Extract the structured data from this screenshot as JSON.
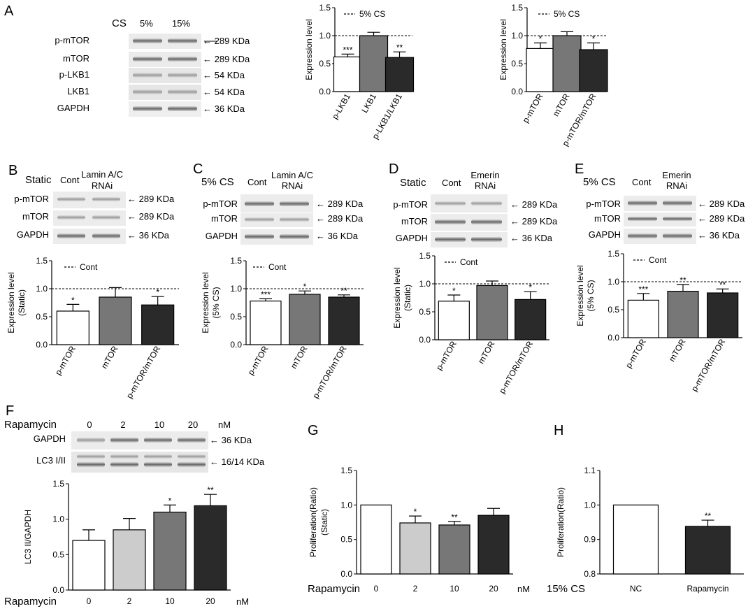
{
  "panels": {
    "A": {
      "label": "A",
      "blot": {
        "header": [
          "CS",
          "5%",
          "15%"
        ],
        "rows": [
          {
            "name": "p-mTOR",
            "kda": "289 KDa"
          },
          {
            "name": "mTOR",
            "kda": "289 KDa"
          },
          {
            "name": "p-LKB1",
            "kda": "54 KDa"
          },
          {
            "name": "LKB1",
            "kda": "54 KDa"
          },
          {
            "name": "GAPDH",
            "kda": "36 KDa"
          }
        ]
      }
    },
    "B": {
      "label": "B",
      "blot": {
        "condition": "Static",
        "lanes": [
          "Cont",
          "Lamin A/C",
          "RNAi"
        ],
        "rows": [
          {
            "name": "p-mTOR",
            "kda": "289 KDa"
          },
          {
            "name": "mTOR",
            "kda": "289 KDa"
          },
          {
            "name": "GAPDH",
            "kda": "36 KDa"
          }
        ]
      }
    },
    "C": {
      "label": "C",
      "blot": {
        "condition": "5% CS",
        "lanes": [
          "Cont",
          "Lamin A/C",
          "RNAi"
        ],
        "rows": [
          {
            "name": "p-mTOR",
            "kda": "289 KDa"
          },
          {
            "name": "mTOR",
            "kda": "289 KDa"
          },
          {
            "name": "GAPDH",
            "kda": "36 KDa"
          }
        ]
      }
    },
    "D": {
      "label": "D",
      "blot": {
        "condition": "Static",
        "lanes": [
          "Cont",
          "Emerin",
          "RNAi"
        ],
        "rows": [
          {
            "name": "p-mTOR",
            "kda": "289 KDa"
          },
          {
            "name": "mTOR",
            "kda": "289 KDa"
          },
          {
            "name": "GAPDH",
            "kda": "36 KDa"
          }
        ]
      }
    },
    "E": {
      "label": "E",
      "blot": {
        "condition": "5% CS",
        "lanes": [
          "Cont",
          "Emerin",
          "RNAi"
        ],
        "rows": [
          {
            "name": "p-mTOR",
            "kda": "289 KDa"
          },
          {
            "name": "mTOR",
            "kda": "289 KDa"
          },
          {
            "name": "GAPDH",
            "kda": "36 KDa"
          }
        ]
      }
    },
    "F": {
      "label": "F",
      "blot": {
        "treatment": "Rapamycin",
        "doses": [
          "0",
          "2",
          "10",
          "20"
        ],
        "unit": "nM",
        "rows": [
          {
            "name": "GAPDH",
            "kda": "36 KDa"
          },
          {
            "name": "LC3 I/II",
            "kda": "16/14 KDa"
          }
        ]
      }
    },
    "G": {
      "label": "G"
    },
    "H": {
      "label": "H"
    }
  },
  "chart_data": [
    {
      "id": "A1",
      "type": "bar",
      "categories": [
        "p-LKB1",
        "LKB1",
        "p-LKB1/LKB1"
      ],
      "values": [
        0.62,
        1.0,
        0.61
      ],
      "errors": [
        0.05,
        0.06,
        0.1
      ],
      "stars": [
        "***",
        "",
        "**"
      ],
      "fills": [
        "#ffffff",
        "#777777",
        "#2a2a2a"
      ],
      "ylabel": "Expression level",
      "ylabel2": "",
      "ylim": [
        0,
        1.5
      ],
      "yticks": [
        "0.0",
        "0.5",
        "1.0",
        "1.5"
      ],
      "ref_line": 1.0,
      "legend": "5% CS",
      "xlabel_prefix": "",
      "xlabel_suffix": ""
    },
    {
      "id": "A2",
      "type": "bar",
      "categories": [
        "p-mTOR",
        "mTOR",
        "p-mTOR/mTOR"
      ],
      "values": [
        0.77,
        1.0,
        0.75
      ],
      "errors": [
        0.1,
        0.07,
        0.12
      ],
      "stars": [
        "*",
        "",
        "*"
      ],
      "fills": [
        "#ffffff",
        "#777777",
        "#2a2a2a"
      ],
      "ylabel": "Expression level",
      "ylabel2": "",
      "ylim": [
        0,
        1.5
      ],
      "yticks": [
        "0.0",
        "0.5",
        "1.0",
        "1.5"
      ],
      "ref_line": 1.0,
      "legend": "5% CS",
      "xlabel_prefix": "",
      "xlabel_suffix": ""
    },
    {
      "id": "B",
      "type": "bar",
      "categories": [
        "p-mTOR",
        "mTOR",
        "p-mTOR/mTOR"
      ],
      "values": [
        0.6,
        0.85,
        0.71
      ],
      "errors": [
        0.12,
        0.17,
        0.15
      ],
      "stars": [
        "*",
        "",
        "*"
      ],
      "fills": [
        "#ffffff",
        "#777777",
        "#2a2a2a"
      ],
      "ylabel": "Expression level",
      "ylabel2": "(Static)",
      "ylim": [
        0,
        1.5
      ],
      "yticks": [
        "0.0",
        "0.5",
        "1.0",
        "1.5"
      ],
      "ref_line": 1.0,
      "legend": "Cont",
      "xlabel_prefix": "",
      "xlabel_suffix": ""
    },
    {
      "id": "C",
      "type": "bar",
      "categories": [
        "p-mTOR",
        "mTOR",
        "p-mTOR/mTOR"
      ],
      "values": [
        0.78,
        0.9,
        0.85
      ],
      "errors": [
        0.04,
        0.06,
        0.04
      ],
      "stars": [
        "***",
        "*",
        "**"
      ],
      "fills": [
        "#ffffff",
        "#777777",
        "#2a2a2a"
      ],
      "ylabel": "Expression level",
      "ylabel2": "(5% CS)",
      "ylim": [
        0,
        1.5
      ],
      "yticks": [
        "0.0",
        "0.5",
        "1.0",
        "1.5"
      ],
      "ref_line": 1.0,
      "legend": "Cont",
      "xlabel_prefix": "",
      "xlabel_suffix": ""
    },
    {
      "id": "D",
      "type": "bar",
      "categories": [
        "p-mTOR",
        "mTOR",
        "p-mTOR/mTOR"
      ],
      "values": [
        0.69,
        0.97,
        0.72
      ],
      "errors": [
        0.11,
        0.08,
        0.14
      ],
      "stars": [
        "*",
        "",
        "*"
      ],
      "fills": [
        "#ffffff",
        "#777777",
        "#2a2a2a"
      ],
      "ylabel": "Expression level",
      "ylabel2": "(Static)",
      "ylim": [
        0,
        1.5
      ],
      "yticks": [
        "0.0",
        "0.5",
        "1.0",
        "1.5"
      ],
      "ref_line": 1.0,
      "legend": "Cont",
      "xlabel_prefix": "",
      "xlabel_suffix": ""
    },
    {
      "id": "E",
      "type": "bar",
      "categories": [
        "p-mTOR",
        "mTOR",
        "p-mTOR/mTOR"
      ],
      "values": [
        0.67,
        0.83,
        0.8
      ],
      "errors": [
        0.12,
        0.12,
        0.07
      ],
      "stars": [
        "***",
        "**",
        "**"
      ],
      "fills": [
        "#ffffff",
        "#777777",
        "#2a2a2a"
      ],
      "ylabel": "Expression level",
      "ylabel2": "(5% CS)",
      "ylim": [
        0,
        1.5
      ],
      "yticks": [
        "0.0",
        "0.5",
        "1.0",
        "1.5"
      ],
      "ref_line": 1.0,
      "legend": "Cont",
      "xlabel_prefix": "",
      "xlabel_suffix": ""
    },
    {
      "id": "F",
      "type": "bar",
      "categories": [
        "0",
        "2",
        "10",
        "20"
      ],
      "values": [
        0.7,
        0.85,
        1.1,
        1.19
      ],
      "errors": [
        0.15,
        0.16,
        0.1,
        0.16
      ],
      "stars": [
        "",
        "",
        "*",
        "**"
      ],
      "fills": [
        "#ffffff",
        "#cccccc",
        "#777777",
        "#2a2a2a"
      ],
      "ylabel": "LC3 II/GAPDH",
      "ylabel2": "",
      "ylim": [
        0,
        1.5
      ],
      "yticks": [
        "0.0",
        "0.5",
        "1.0",
        "1.5"
      ],
      "ref_line": null,
      "legend": "",
      "xlabel_prefix": "Rapamycin",
      "xlabel_suffix": "nM"
    },
    {
      "id": "G",
      "type": "bar",
      "categories": [
        "0",
        "2",
        "10",
        "20"
      ],
      "values": [
        1.0,
        0.74,
        0.71,
        0.85
      ],
      "errors": [
        0.0,
        0.1,
        0.05,
        0.1
      ],
      "stars": [
        "",
        "*",
        "**",
        ""
      ],
      "fills": [
        "#ffffff",
        "#cccccc",
        "#777777",
        "#2a2a2a"
      ],
      "ylabel": "Proliferation(Ratio)",
      "ylabel2": "(Static)",
      "ylim": [
        0,
        1.5
      ],
      "yticks": [
        "0.0",
        "0.5",
        "1.0",
        "1.5"
      ],
      "ref_line": null,
      "legend": "",
      "xlabel_prefix": "Rapamycin",
      "xlabel_suffix": "nM"
    },
    {
      "id": "H",
      "type": "bar",
      "categories": [
        "NC",
        "Rapamycin"
      ],
      "values": [
        1.0,
        0.938
      ],
      "errors": [
        0.0,
        0.018
      ],
      "stars": [
        "",
        "**"
      ],
      "fills": [
        "#ffffff",
        "#2a2a2a"
      ],
      "ylabel": "Proliferation(Ratio)",
      "ylabel2": "",
      "ylim": [
        0.8,
        1.1
      ],
      "yticks": [
        "0.8",
        "0.9",
        "1.0",
        "1.1"
      ],
      "ref_line": null,
      "legend": "",
      "xlabel_prefix": "15% CS",
      "xlabel_suffix": ""
    }
  ]
}
